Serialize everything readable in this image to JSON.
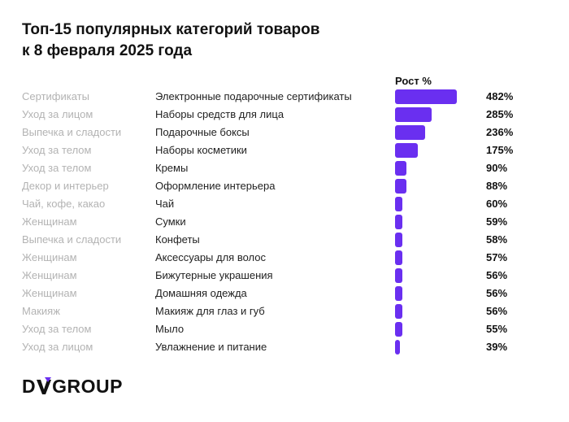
{
  "title_line1": "Топ-15 популярных категорий товаров",
  "title_line2": "к 8 февраля 2025 года",
  "column_header": "Рост %",
  "logo": {
    "part1": "D",
    "part2": "GROUP",
    "full": "DVGROUP"
  },
  "colors": {
    "bar": "#6a2ff0",
    "category_text": "#b3b3b3"
  },
  "chart_data": {
    "type": "bar",
    "orientation": "horizontal",
    "title": "Топ-15 популярных категорий товаров к 8 февраля 2025 года",
    "value_label": "Рост %",
    "xlim": [
      0,
      482
    ],
    "rows": [
      {
        "category": "Сертификаты",
        "subcategory": "Электронные подарочные сертификаты",
        "value": 482,
        "label": "482%"
      },
      {
        "category": "Уход за лицом",
        "subcategory": "Наборы средств для лица",
        "value": 285,
        "label": "285%"
      },
      {
        "category": "Выпечка и сладости",
        "subcategory": "Подарочные боксы",
        "value": 236,
        "label": "236%"
      },
      {
        "category": "Уход за телом",
        "subcategory": "Наборы косметики",
        "value": 175,
        "label": "175%"
      },
      {
        "category": "Уход за телом",
        "subcategory": "Кремы",
        "value": 90,
        "label": "90%"
      },
      {
        "category": "Декор и интерьер",
        "subcategory": "Оформление интерьера",
        "value": 88,
        "label": "88%"
      },
      {
        "category": "Чай, кофе, какао",
        "subcategory": "Чай",
        "value": 60,
        "label": "60%"
      },
      {
        "category": "Женщинам",
        "subcategory": "Сумки",
        "value": 59,
        "label": "59%"
      },
      {
        "category": "Выпечка и сладости",
        "subcategory": "Конфеты",
        "value": 58,
        "label": "58%"
      },
      {
        "category": "Женщинам",
        "subcategory": "Аксессуары для волос",
        "value": 57,
        "label": "57%"
      },
      {
        "category": "Женщинам",
        "subcategory": "Бижутерные украшения",
        "value": 56,
        "label": "56%"
      },
      {
        "category": "Женщинам",
        "subcategory": "Домашняя одежда",
        "value": 56,
        "label": "56%"
      },
      {
        "category": "Макияж",
        "subcategory": "Макияж для глаз и губ",
        "value": 56,
        "label": "56%"
      },
      {
        "category": "Уход за телом",
        "subcategory": "Мыло",
        "value": 55,
        "label": "55%"
      },
      {
        "category": "Уход за лицом",
        "subcategory": "Увлажнение и питание",
        "value": 39,
        "label": "39%"
      }
    ]
  }
}
